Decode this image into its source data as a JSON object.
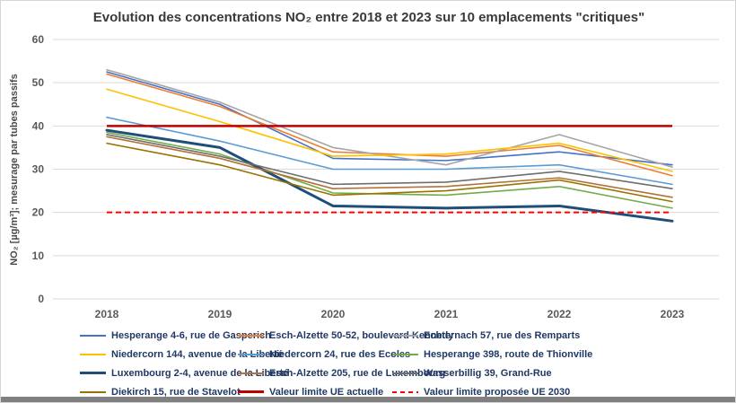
{
  "chart_data": {
    "type": "line",
    "title": "Evolution des concentrations NO₂ entre 2018 et 2023 sur 10 emplacements \"critiques\"",
    "ylabel": "NO₂ [µg/m³]; mesurage par tubes passifs",
    "xlabel": "",
    "categories": [
      "2018",
      "2019",
      "2020",
      "2021",
      "2022",
      "2023"
    ],
    "ylim": [
      0,
      60
    ],
    "yticks": [
      0,
      10,
      20,
      30,
      40,
      50,
      60
    ],
    "grid": "horizontal-only",
    "legend_position": "bottom",
    "series": [
      {
        "id": "hesperange-4-6",
        "name": "Hesperange 4-6, rue de Gasperich",
        "color": "#4472C4",
        "width": 1.6,
        "values": [
          52.5,
          45,
          32.5,
          32,
          34,
          31
        ]
      },
      {
        "id": "esch-alzette-50-52",
        "name": "Esch-Alzette 50-52, boulevard Kennedy",
        "color": "#ED7D31",
        "width": 1.6,
        "values": [
          52,
          44.5,
          34,
          33,
          35.5,
          28.5
        ]
      },
      {
        "id": "echternach-57",
        "name": "Echternach 57, rue des Remparts",
        "color": "#A5A5A5",
        "width": 1.6,
        "values": [
          53,
          45.5,
          35,
          31,
          38,
          30.5
        ]
      },
      {
        "id": "niedercorn-144",
        "name": "Niedercorn 144, avenue de la Liberté",
        "color": "#FFC000",
        "width": 1.6,
        "values": [
          48.5,
          41,
          33,
          33.5,
          36,
          29.5
        ]
      },
      {
        "id": "niedercorn-24",
        "name": "Niedercorn 24, rue des Ecoles",
        "color": "#5B9BD5",
        "width": 1.6,
        "values": [
          42,
          36.5,
          30,
          30,
          31,
          26.5
        ]
      },
      {
        "id": "hesperange-398",
        "name": "Hesperange 398, route de Thionville",
        "color": "#70AD47",
        "width": 1.6,
        "values": [
          38.5,
          33.5,
          24.5,
          24,
          26,
          21
        ]
      },
      {
        "id": "luxembourg-2-4",
        "name": "Luxembourg 2-4, avenue de la Liberté",
        "color": "#1F4E79",
        "width": 3,
        "values": [
          39,
          35,
          21.5,
          21,
          21.5,
          18
        ]
      },
      {
        "id": "esch-alzette-205",
        "name": "Esch-Alzette 205, rue de Luxembourg",
        "color": "#B5713A",
        "width": 1.6,
        "values": [
          37.5,
          32.5,
          25.5,
          26,
          28,
          23.5
        ]
      },
      {
        "id": "wasserbillig-39",
        "name": "Wasserbillig 39, Grand-Rue",
        "color": "#6E6E6E",
        "width": 1.6,
        "values": [
          38,
          33,
          26.5,
          27,
          29.5,
          25.5
        ]
      },
      {
        "id": "diekirch-15",
        "name": "Diekirch 15, rue de Stavelot",
        "color": "#997300",
        "width": 1.6,
        "values": [
          36,
          31,
          24,
          25,
          27.5,
          22.5
        ]
      }
    ],
    "limits": [
      {
        "id": "limite-ue-actuelle",
        "name": "Valeur limite UE actuelle",
        "value": 40,
        "color": "#C00000",
        "style": "solid",
        "width": 2.5
      },
      {
        "id": "limite-ue-2030",
        "name": "Valeur limite proposée UE 2030",
        "value": 20,
        "color": "#FF0000",
        "style": "dashed",
        "width": 2
      }
    ]
  }
}
